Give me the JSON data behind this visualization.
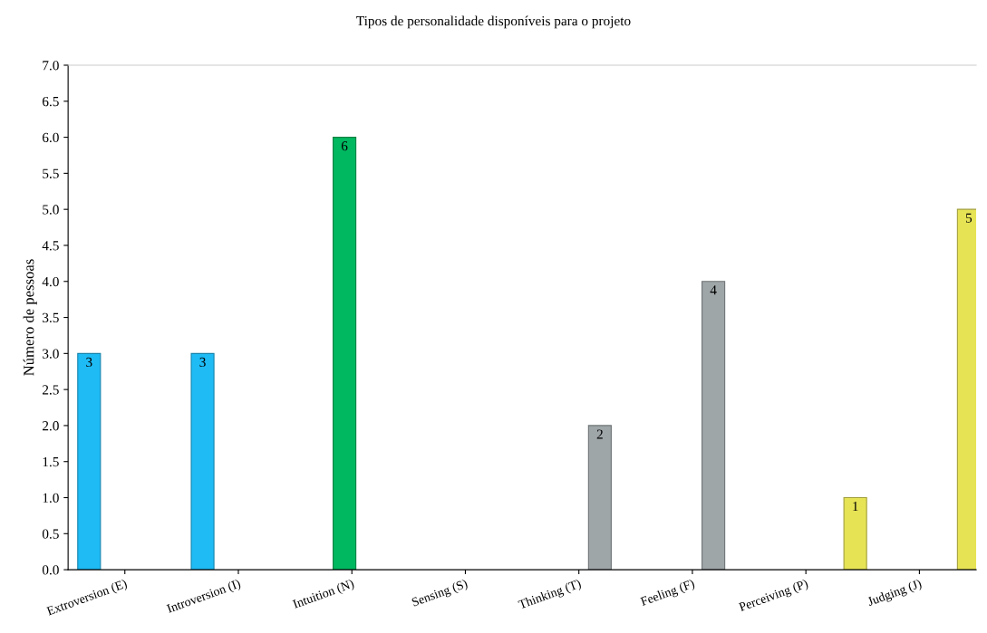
{
  "chart_data": {
    "type": "bar",
    "title": "Tipos de personalidade disponíveis para o projeto",
    "ylabel": "Número de pessoas",
    "categories": [
      "Extroversion (E)",
      "Introversion (I)",
      "Intuition (N)",
      "Sensing (S)",
      "Thinking (T)",
      "Feeling (F)",
      "Perceiving (P)",
      "Judging (J)"
    ],
    "series": [
      {
        "color": "#1ebbf5",
        "values": [
          3,
          3,
          null,
          null,
          null,
          null,
          null,
          null
        ]
      },
      {
        "color": "#00b860",
        "values": [
          null,
          null,
          6,
          null,
          null,
          null,
          null,
          null
        ]
      },
      {
        "color": "#9fa6a8",
        "values": [
          null,
          null,
          null,
          null,
          2,
          4,
          null,
          null
        ]
      },
      {
        "color": "#e6e355",
        "values": [
          null,
          null,
          null,
          null,
          null,
          null,
          1,
          5
        ]
      }
    ],
    "ylim": [
      0,
      7
    ],
    "yticks": [
      {
        "value": 0,
        "label": "0.0"
      },
      {
        "value": 0.5,
        "label": "0.5"
      },
      {
        "value": 1,
        "label": "1.0"
      },
      {
        "value": 1.5,
        "label": "1.5"
      },
      {
        "value": 2,
        "label": "2.0"
      },
      {
        "value": 2.5,
        "label": "2.5"
      },
      {
        "value": 3,
        "label": "3.0"
      },
      {
        "value": 3.5,
        "label": "3.5"
      },
      {
        "value": 4,
        "label": "4.0"
      },
      {
        "value": 4.5,
        "label": "4.5"
      },
      {
        "value": 5,
        "label": "5.0"
      },
      {
        "value": 5.5,
        "label": "5.5"
      },
      {
        "value": 6,
        "label": "6.0"
      },
      {
        "value": 6.5,
        "label": "6.5"
      },
      {
        "value": 7,
        "label": "7.0"
      }
    ],
    "data_labels": true,
    "grid": false,
    "legend": false
  }
}
